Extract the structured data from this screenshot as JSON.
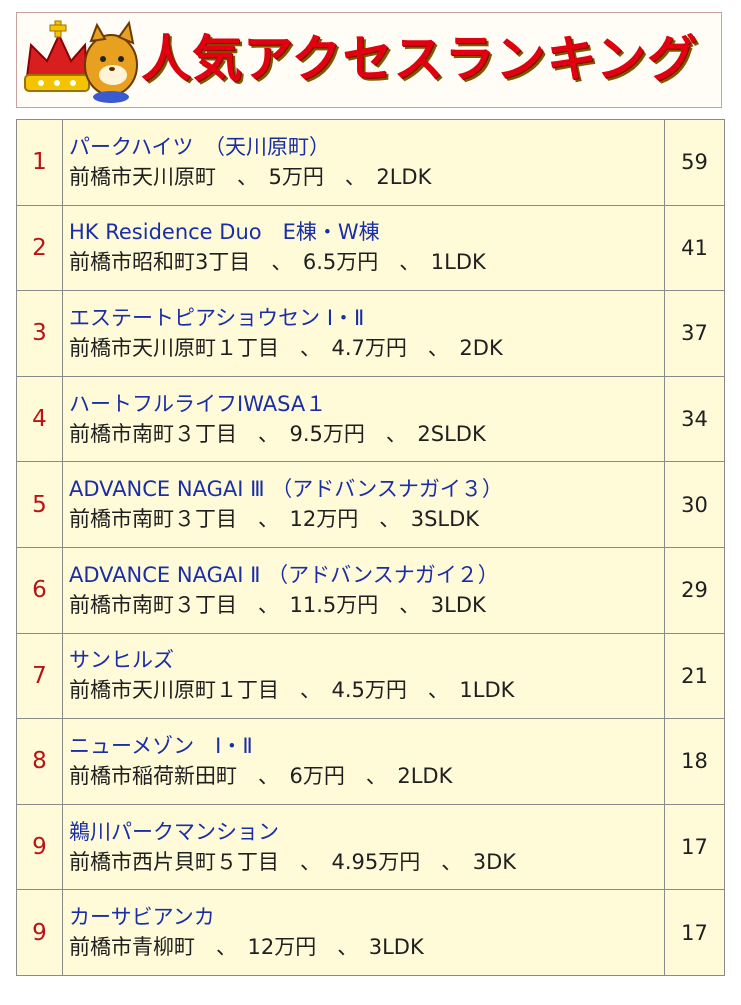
{
  "banner": {
    "title": "人気アクセスランキング",
    "mascot_icon": "crown-mascot-icon",
    "title_color": "#e00010",
    "border_color": "#c9a0a0"
  },
  "ranking": [
    {
      "rank": "1",
      "name": "パークハイツ　（天川原町）",
      "address": "前橋市天川原町",
      "rent": "5万円",
      "layout": "2LDK",
      "count": "59"
    },
    {
      "rank": "2",
      "name": "HK Residence Duo　E棟・W棟",
      "address": "前橋市昭和町3丁目",
      "rent": "6.5万円",
      "layout": "1LDK",
      "count": "41"
    },
    {
      "rank": "3",
      "name": "エステートピアショウセン Ⅰ・Ⅱ",
      "address": "前橋市天川原町１丁目",
      "rent": "4.7万円",
      "layout": "2DK",
      "count": "37"
    },
    {
      "rank": "4",
      "name": "ハートフルライフIWASA１",
      "address": "前橋市南町３丁目",
      "rent": "9.5万円",
      "layout": "2SLDK",
      "count": "34"
    },
    {
      "rank": "5",
      "name": "ADVANCE NAGAI Ⅲ （アドバンスナガイ３）",
      "address": "前橋市南町３丁目",
      "rent": "12万円",
      "layout": "3SLDK",
      "count": "30"
    },
    {
      "rank": "6",
      "name": "ADVANCE NAGAI Ⅱ （アドバンスナガイ２）",
      "address": "前橋市南町３丁目",
      "rent": "11.5万円",
      "layout": "3LDK",
      "count": "29"
    },
    {
      "rank": "7",
      "name": "サンヒルズ",
      "address": "前橋市天川原町１丁目",
      "rent": "4.5万円",
      "layout": "1LDK",
      "count": "21"
    },
    {
      "rank": "8",
      "name": "ニューメゾン　Ⅰ・Ⅱ",
      "address": "前橋市稲荷新田町",
      "rent": "6万円",
      "layout": "2LDK",
      "count": "18"
    },
    {
      "rank": "9",
      "name": "鵜川パークマンション",
      "address": "前橋市西片貝町５丁目",
      "rent": "4.95万円",
      "layout": "3DK",
      "count": "17"
    },
    {
      "rank": "9",
      "name": "カーサビアンカ",
      "address": "前橋市青柳町",
      "rent": "12万円",
      "layout": "3LDK",
      "count": "17"
    }
  ],
  "colors": {
    "rank": "#b81414",
    "name": "#1a2ea6",
    "table_bg": "#fffbd9"
  }
}
